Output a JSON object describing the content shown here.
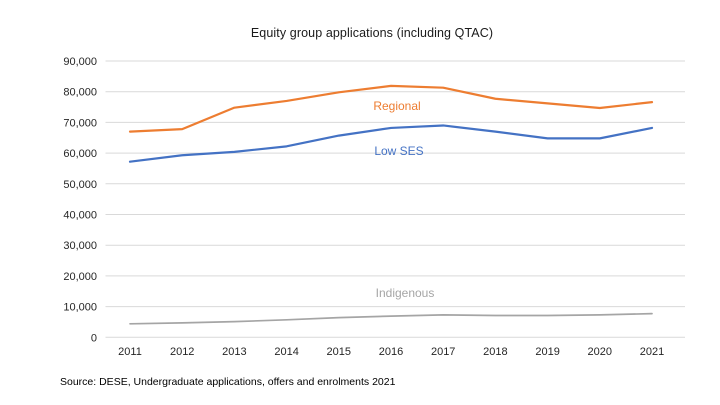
{
  "chart_data": {
    "type": "line",
    "title": "Equity group applications (including QTAC)",
    "categories": [
      "2011",
      "2012",
      "2013",
      "2014",
      "2015",
      "2016",
      "2017",
      "2018",
      "2019",
      "2020",
      "2021"
    ],
    "series": [
      {
        "name": "Regional",
        "color": "#ED7D31",
        "stroke_width": 2.2,
        "values": [
          67000,
          67800,
          74800,
          77000,
          79800,
          81900,
          81300,
          77700,
          76200,
          74700,
          76600
        ],
        "label": {
          "x": 397,
          "y": 110
        }
      },
      {
        "name": "Low SES",
        "color": "#4472C4",
        "stroke_width": 2.2,
        "values": [
          57200,
          59300,
          60400,
          62200,
          65700,
          68200,
          69000,
          67000,
          64800,
          64800,
          68200
        ],
        "label": {
          "x": 399,
          "y": 155
        }
      },
      {
        "name": "Indigenous",
        "color": "#A5A5A5",
        "stroke_width": 1.7,
        "values": [
          4400,
          4700,
          5100,
          5700,
          6400,
          6900,
          7300,
          7100,
          7100,
          7300,
          7700
        ],
        "label": {
          "x": 405,
          "y": 297
        }
      }
    ],
    "xlabel": "",
    "ylabel": "",
    "ylim": [
      0,
      90000
    ],
    "ytick_step": 10000,
    "grid": "horizontal",
    "legend": "inline-series-labels",
    "gridline_color": "#D9D9D9",
    "axis_text_color": "#262626"
  },
  "source": {
    "text": "Source: DESE, Undergraduate applications, offers and enrolments 2021"
  }
}
